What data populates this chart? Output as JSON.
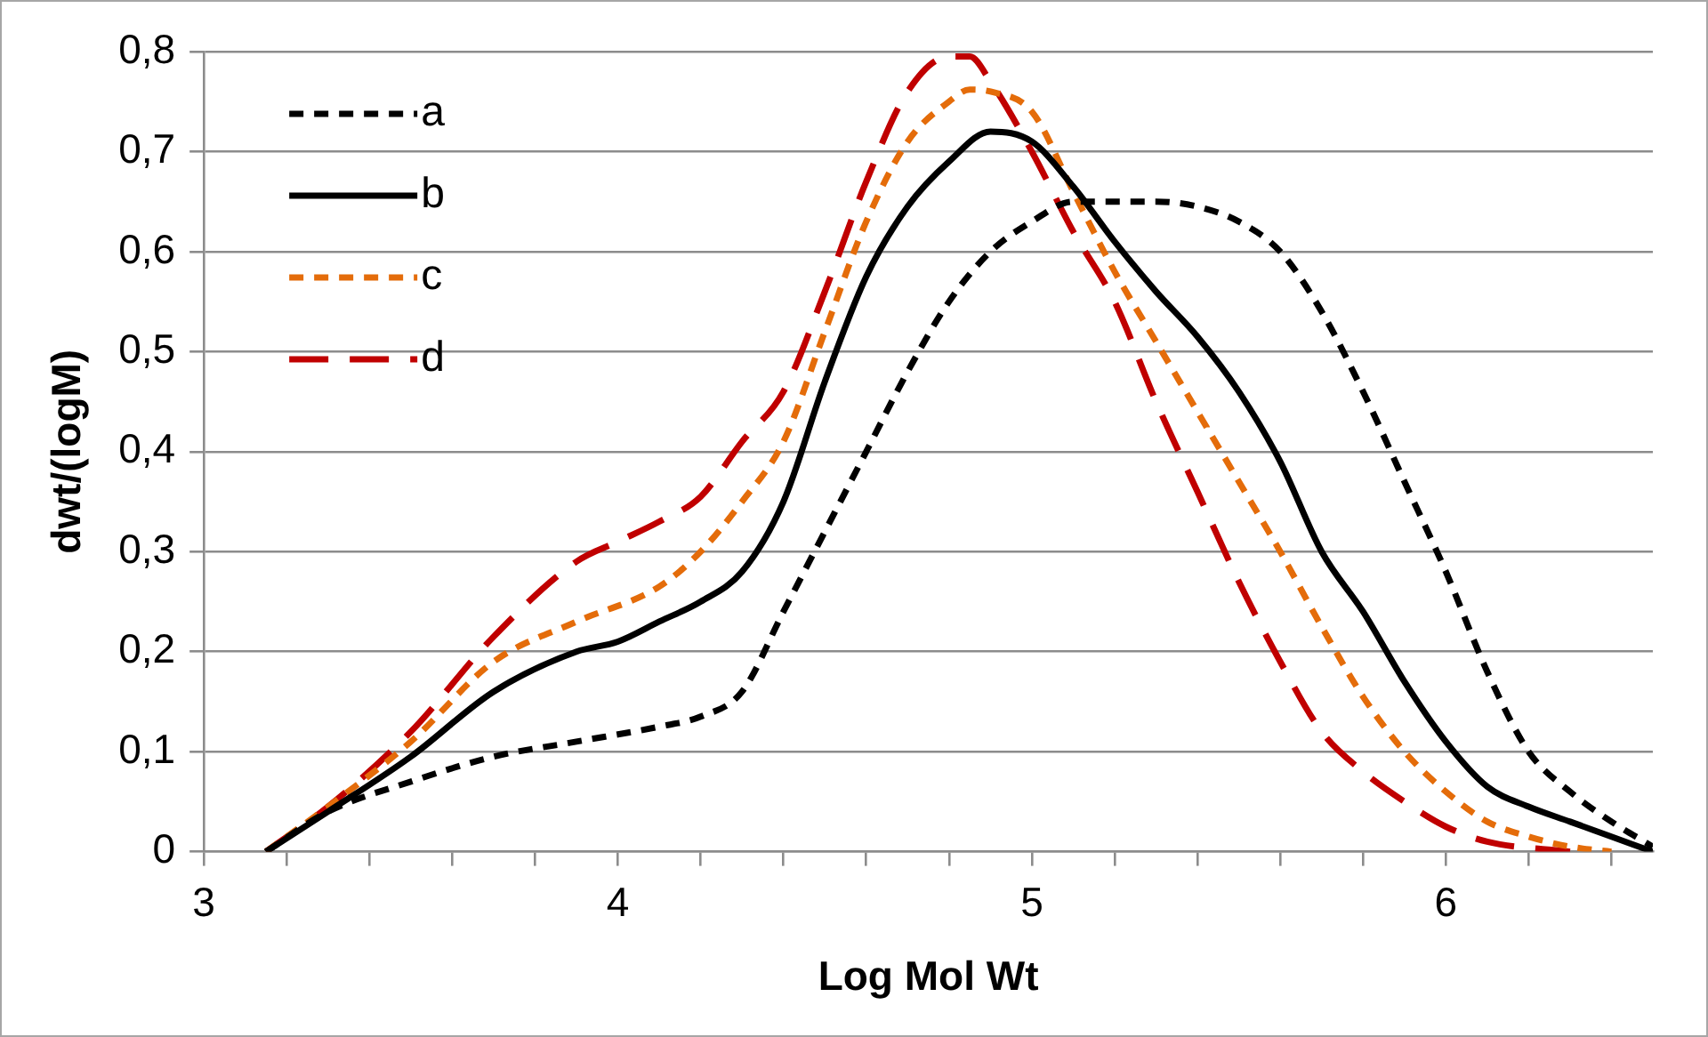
{
  "chart_data": {
    "type": "line",
    "xlabel": "Log Mol Wt",
    "ylabel": "dwt/(logM)",
    "xlim": [
      3,
      6.5
    ],
    "ylim": [
      0,
      0.8
    ],
    "xticks": [
      3,
      {
        "value": 3.2,
        "label": null
      },
      {
        "value": 3.4,
        "label": null
      },
      {
        "value": 3.6,
        "label": null
      },
      {
        "value": 3.8,
        "label": null
      },
      4,
      {
        "value": 4.2,
        "label": null
      },
      {
        "value": 4.4,
        "label": null
      },
      {
        "value": 4.6,
        "label": null
      },
      {
        "value": 4.8,
        "label": null
      },
      5,
      {
        "value": 5.2,
        "label": null
      },
      {
        "value": 5.4,
        "label": null
      },
      {
        "value": 5.6,
        "label": null
      },
      {
        "value": 5.8,
        "label": null
      },
      6,
      {
        "value": 6.2,
        "label": null
      },
      {
        "value": 6.4,
        "label": null
      }
    ],
    "yticks": [
      0,
      {
        "value": 0.1,
        "label": "0,1"
      },
      {
        "value": 0.2,
        "label": "0,2"
      },
      {
        "value": 0.3,
        "label": "0,3"
      },
      {
        "value": 0.4,
        "label": "0,4"
      },
      {
        "value": 0.5,
        "label": "0,5"
      },
      {
        "value": 0.6,
        "label": "0,6"
      },
      {
        "value": 0.7,
        "label": "0,7"
      },
      {
        "value": 0.8,
        "label": "0,8"
      }
    ],
    "grid": "y",
    "legend": "top left",
    "marker": "none",
    "series": [
      {
        "name": "a",
        "color": "#000000",
        "line_style": "dotted",
        "x": [
          3.15,
          3.3,
          3.5,
          3.7,
          3.9,
          4.1,
          4.2,
          4.3,
          4.4,
          4.5,
          4.6,
          4.7,
          4.8,
          4.9,
          5.0,
          5.1,
          5.2,
          5.3,
          5.4,
          5.5,
          5.6,
          5.7,
          5.8,
          5.9,
          6.0,
          6.1,
          6.2,
          6.3,
          6.4,
          6.5
        ],
        "values": [
          0,
          0.04,
          0.07,
          0.095,
          0.11,
          0.125,
          0.135,
          0.16,
          0.24,
          0.32,
          0.4,
          0.48,
          0.55,
          0.6,
          0.63,
          0.65,
          0.65,
          0.65,
          0.645,
          0.63,
          0.6,
          0.54,
          0.46,
          0.37,
          0.28,
          0.18,
          0.1,
          0.06,
          0.03,
          0.005
        ]
      },
      {
        "name": "b",
        "color": "#000000",
        "line_style": "solid",
        "x": [
          3.15,
          3.3,
          3.5,
          3.7,
          3.9,
          4.0,
          4.1,
          4.2,
          4.3,
          4.4,
          4.5,
          4.6,
          4.7,
          4.8,
          4.9,
          5.0,
          5.1,
          5.2,
          5.3,
          5.4,
          5.5,
          5.6,
          5.7,
          5.8,
          5.9,
          6.0,
          6.1,
          6.2,
          6.3,
          6.4,
          6.5
        ],
        "values": [
          0,
          0.04,
          0.095,
          0.16,
          0.2,
          0.21,
          0.23,
          0.25,
          0.28,
          0.35,
          0.47,
          0.575,
          0.645,
          0.69,
          0.72,
          0.71,
          0.665,
          0.61,
          0.56,
          0.515,
          0.46,
          0.39,
          0.3,
          0.24,
          0.17,
          0.11,
          0.065,
          0.045,
          0.03,
          0.015,
          0
        ]
      },
      {
        "name": "c",
        "color": "#e46c0a",
        "line_style": "dotted",
        "x": [
          3.15,
          3.3,
          3.5,
          3.7,
          3.9,
          4.1,
          4.2,
          4.3,
          4.4,
          4.5,
          4.6,
          4.7,
          4.8,
          4.85,
          4.9,
          5.0,
          5.1,
          5.2,
          5.3,
          5.4,
          5.5,
          5.6,
          5.7,
          5.8,
          5.9,
          6.0,
          6.1,
          6.2,
          6.3,
          6.4
        ],
        "values": [
          0,
          0.045,
          0.11,
          0.19,
          0.23,
          0.265,
          0.3,
          0.35,
          0.41,
          0.52,
          0.63,
          0.71,
          0.75,
          0.762,
          0.76,
          0.74,
          0.66,
          0.58,
          0.51,
          0.44,
          0.37,
          0.3,
          0.225,
          0.155,
          0.1,
          0.06,
          0.03,
          0.015,
          0.005,
          0
        ]
      },
      {
        "name": "d",
        "color": "#c00000",
        "line_style": "dashed",
        "x": [
          3.15,
          3.3,
          3.5,
          3.7,
          3.9,
          4.0,
          4.1,
          4.2,
          4.3,
          4.4,
          4.5,
          4.6,
          4.7,
          4.8,
          4.85,
          4.9,
          5.0,
          5.1,
          5.2,
          5.3,
          5.4,
          5.5,
          5.6,
          5.7,
          5.8,
          5.9,
          6.0,
          6.1,
          6.3
        ],
        "values": [
          0,
          0.045,
          0.12,
          0.215,
          0.29,
          0.31,
          0.33,
          0.355,
          0.41,
          0.46,
          0.56,
          0.67,
          0.76,
          0.795,
          0.795,
          0.77,
          0.7,
          0.62,
          0.55,
          0.45,
          0.36,
          0.27,
          0.19,
          0.12,
          0.08,
          0.05,
          0.025,
          0.01,
          0
        ]
      }
    ]
  }
}
